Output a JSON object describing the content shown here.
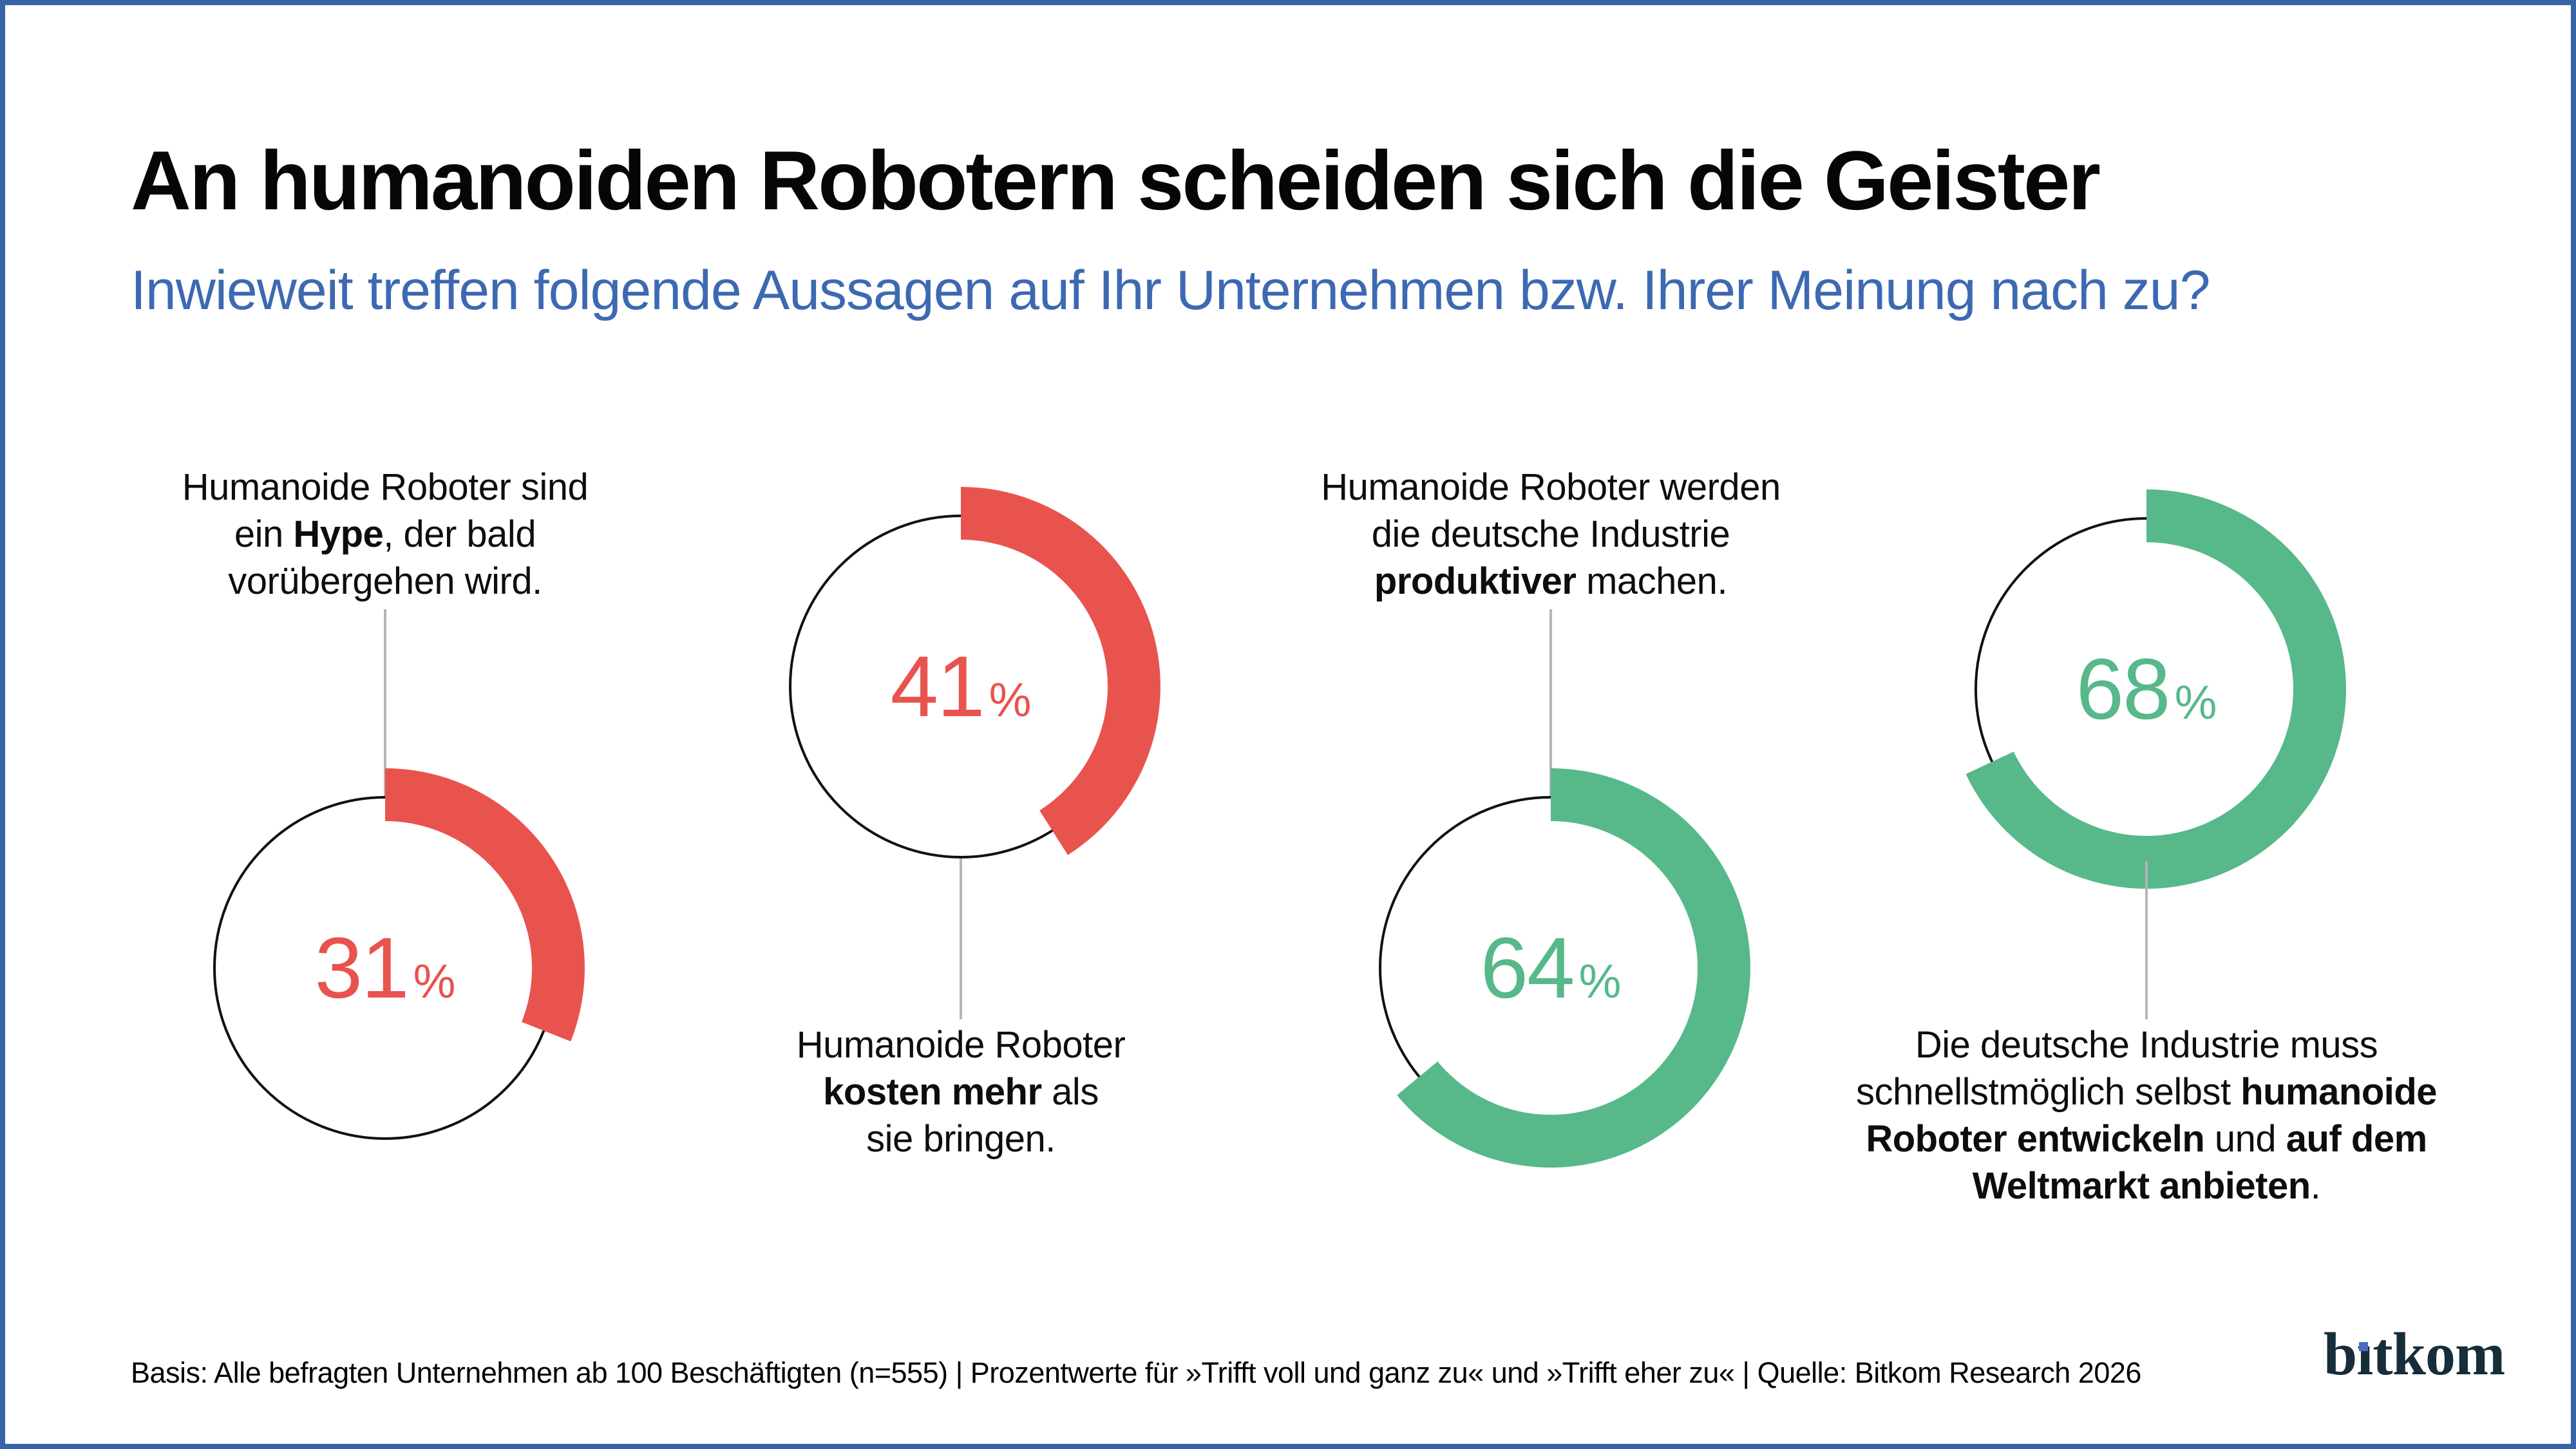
{
  "page": {
    "title": "An humanoiden Robotern scheiden sich die Geister",
    "subtitle": "Inwieweit treffen folgende Aussagen auf Ihr Unternehmen bzw. Ihrer Meinung nach zu?",
    "footer": "Basis: Alle befragten Unternehmen ab 100 Beschäftigten (n=555) | Prozentwerte für »Trifft voll und ganz zu« und »Trifft eher zu« | Quelle: Bitkom Research 2026",
    "logo_text_part1": "b",
    "logo_text_i": "ı",
    "logo_text_part2": "tkom"
  },
  "colors": {
    "negative": "#e9534e",
    "positive": "#57b88a",
    "subtitle_blue": "#3d69b2",
    "border_blue": "#3a64a8",
    "circle_outline": "#111111",
    "connector_gray": "#b5b5b5",
    "logo_dark": "#162d3a",
    "logo_dot_blue": "#4a6ebd"
  },
  "chart_data": {
    "type": "pie",
    "subtype": "donut-ring-multiples",
    "unit": "%",
    "title": "An humanoiden Robotern scheiden sich die Geister",
    "subtitle": "Inwieweit treffen folgende Aussagen auf Ihr Unternehmen bzw. Ihrer Meinung nach zu?",
    "value_range": [
      0,
      100
    ],
    "arc_start": "12-o-clock, clockwise",
    "series": [
      {
        "value": 31,
        "sentiment": "negative",
        "label_position": "above",
        "label_text": "Humanoide Roboter sind ein Hype, der bald vorübergehen wird.",
        "label_lines": [
          [
            {
              "t": "Humanoide Roboter sind"
            }
          ],
          [
            {
              "t": "ein "
            },
            {
              "t": "Hype",
              "b": true
            },
            {
              "t": ", der bald"
            }
          ],
          [
            {
              "t": "vorübergehen wird."
            }
          ]
        ]
      },
      {
        "value": 41,
        "sentiment": "negative",
        "label_position": "below",
        "label_text": "Humanoide Roboter kosten mehr als sie bringen.",
        "label_lines": [
          [
            {
              "t": "Humanoide Roboter"
            }
          ],
          [
            {
              "t": "kosten mehr",
              "b": true
            },
            {
              "t": " als"
            }
          ],
          [
            {
              "t": "sie bringen."
            }
          ]
        ]
      },
      {
        "value": 64,
        "sentiment": "positive",
        "label_position": "above",
        "label_text": "Humanoide Roboter werden die deutsche Industrie produktiver machen.",
        "label_lines": [
          [
            {
              "t": "Humanoide Roboter werden"
            }
          ],
          [
            {
              "t": "die deutsche Industrie"
            }
          ],
          [
            {
              "t": "produktiver",
              "b": true
            },
            {
              "t": " machen."
            }
          ]
        ]
      },
      {
        "value": 68,
        "sentiment": "positive",
        "label_position": "below",
        "label_text": "Die deutsche Industrie muss schnellstmöglich selbst humanoide Roboter entwickeln und auf dem Weltmarkt anbieten.",
        "label_lines": [
          [
            {
              "t": "Die deutsche Industrie muss"
            }
          ],
          [
            {
              "t": "schnellstmöglich selbst "
            },
            {
              "t": "humanoide",
              "b": true
            }
          ],
          [
            {
              "t": "Roboter entwickeln",
              "b": true
            },
            {
              "t": " und "
            },
            {
              "t": "auf dem",
              "b": true
            }
          ],
          [
            {
              "t": "Weltmarkt anbieten",
              "b": true
            },
            {
              "t": "."
            }
          ]
        ]
      }
    ]
  }
}
